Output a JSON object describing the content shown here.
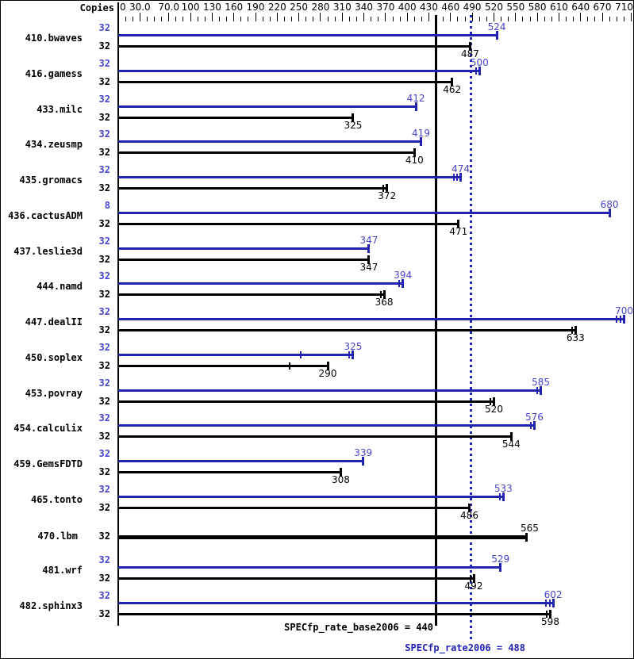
{
  "header": {
    "copies_label": "Copies"
  },
  "chart_data": {
    "type": "bar",
    "orientation": "horizontal",
    "title": "",
    "axis": {
      "min": 0,
      "max": 710,
      "minor_step": 10,
      "labels": [
        {
          "v": 0,
          "t": "0"
        },
        {
          "v": 30,
          "t": "30.0"
        },
        {
          "v": 70,
          "t": "70.0"
        },
        {
          "v": 100,
          "t": "100"
        },
        {
          "v": 130,
          "t": "130"
        },
        {
          "v": 160,
          "t": "160"
        },
        {
          "v": 190,
          "t": "190"
        },
        {
          "v": 220,
          "t": "220"
        },
        {
          "v": 250,
          "t": "250"
        },
        {
          "v": 280,
          "t": "280"
        },
        {
          "v": 310,
          "t": "310"
        },
        {
          "v": 340,
          "t": "340"
        },
        {
          "v": 370,
          "t": "370"
        },
        {
          "v": 400,
          "t": "400"
        },
        {
          "v": 430,
          "t": "430"
        },
        {
          "v": 460,
          "t": "460"
        },
        {
          "v": 490,
          "t": "490"
        },
        {
          "v": 520,
          "t": "520"
        },
        {
          "v": 550,
          "t": "550"
        },
        {
          "v": 580,
          "t": "580"
        },
        {
          "v": 610,
          "t": "610"
        },
        {
          "v": 640,
          "t": "640"
        },
        {
          "v": 670,
          "t": "670"
        },
        {
          "v": 710,
          "t": "710"
        }
      ]
    },
    "colors": {
      "peak_bar": "#2323b2",
      "peak_text": "#4545cc",
      "base_bar": "#000000",
      "base_text": "#000000"
    },
    "reference_lines": [
      {
        "id": "base",
        "label": "SPECfp_rate_base2006 = 440",
        "value": 440,
        "style": "solid",
        "color": "#000000"
      },
      {
        "id": "peak",
        "label": "SPECfp_rate2006 = 488",
        "value": 488,
        "style": "dotted",
        "color": "#2323b2"
      }
    ],
    "benchmarks": [
      {
        "name": "410.bwaves",
        "bars": [
          {
            "series": "peak",
            "copies": "32",
            "value": 524,
            "end_marks": 1
          },
          {
            "series": "base",
            "copies": "32",
            "value": 487,
            "end_marks": 1
          }
        ]
      },
      {
        "name": "416.gamess",
        "bars": [
          {
            "series": "peak",
            "copies": "32",
            "value": 500,
            "end_marks": 2
          },
          {
            "series": "base",
            "copies": "32",
            "value": 462,
            "end_marks": 1
          }
        ]
      },
      {
        "name": "433.milc",
        "bars": [
          {
            "series": "peak",
            "copies": "32",
            "value": 412,
            "end_marks": 1
          },
          {
            "series": "base",
            "copies": "32",
            "value": 325,
            "end_marks": 1
          }
        ]
      },
      {
        "name": "434.zeusmp",
        "bars": [
          {
            "series": "peak",
            "copies": "32",
            "value": 419,
            "end_marks": 1
          },
          {
            "series": "base",
            "copies": "32",
            "value": 410,
            "end_marks": 1
          }
        ]
      },
      {
        "name": "435.gromacs",
        "bars": [
          {
            "series": "peak",
            "copies": "32",
            "value": 474,
            "end_marks": 3
          },
          {
            "series": "base",
            "copies": "32",
            "value": 372,
            "end_marks": 2
          }
        ]
      },
      {
        "name": "436.cactusADM",
        "bars": [
          {
            "series": "peak",
            "copies": "8",
            "value": 680,
            "end_marks": 1
          },
          {
            "series": "base",
            "copies": "32",
            "value": 471,
            "end_marks": 1
          }
        ]
      },
      {
        "name": "437.leslie3d",
        "bars": [
          {
            "series": "peak",
            "copies": "32",
            "value": 347,
            "end_marks": 1
          },
          {
            "series": "base",
            "copies": "32",
            "value": 347,
            "end_marks": 1
          }
        ]
      },
      {
        "name": "444.namd",
        "bars": [
          {
            "series": "peak",
            "copies": "32",
            "value": 394,
            "end_marks": 2
          },
          {
            "series": "base",
            "copies": "32",
            "value": 368,
            "end_marks": 2
          }
        ]
      },
      {
        "name": "447.dealII",
        "bars": [
          {
            "series": "peak",
            "copies": "32",
            "value": 700,
            "end_marks": 3
          },
          {
            "series": "base",
            "copies": "32",
            "value": 633,
            "end_marks": 2
          }
        ]
      },
      {
        "name": "450.soplex",
        "bars": [
          {
            "series": "peak",
            "copies": "32",
            "value": 325,
            "end_marks": 2,
            "run_ticks": [
              253
            ]
          },
          {
            "series": "base",
            "copies": "32",
            "value": 290,
            "end_marks": 1,
            "run_ticks": [
              237
            ]
          }
        ]
      },
      {
        "name": "453.povray",
        "bars": [
          {
            "series": "peak",
            "copies": "32",
            "value": 585,
            "end_marks": 2
          },
          {
            "series": "base",
            "copies": "32",
            "value": 520,
            "end_marks": 2
          }
        ]
      },
      {
        "name": "454.calculix",
        "bars": [
          {
            "series": "peak",
            "copies": "32",
            "value": 576,
            "end_marks": 2
          },
          {
            "series": "base",
            "copies": "32",
            "value": 544,
            "end_marks": 1
          }
        ]
      },
      {
        "name": "459.GemsFDTD",
        "bars": [
          {
            "series": "peak",
            "copies": "32",
            "value": 339,
            "end_marks": 1
          },
          {
            "series": "base",
            "copies": "32",
            "value": 308,
            "end_marks": 1
          }
        ]
      },
      {
        "name": "465.tonto",
        "bars": [
          {
            "series": "peak",
            "copies": "32",
            "value": 533,
            "end_marks": 2
          },
          {
            "series": "base",
            "copies": "32",
            "value": 486,
            "end_marks": 1
          }
        ]
      },
      {
        "name": "470.lbm",
        "bars": [
          {
            "series": "base",
            "copies": "32",
            "value": 565,
            "end_marks": 1,
            "thick": true
          }
        ]
      },
      {
        "name": "481.wrf",
        "bars": [
          {
            "series": "peak",
            "copies": "32",
            "value": 529,
            "end_marks": 1
          },
          {
            "series": "base",
            "copies": "32",
            "value": 492,
            "end_marks": 2
          }
        ]
      },
      {
        "name": "482.sphinx3",
        "bars": [
          {
            "series": "peak",
            "copies": "32",
            "value": 602,
            "end_marks": 3
          },
          {
            "series": "base",
            "copies": "32",
            "value": 598,
            "end_marks": 2
          }
        ]
      }
    ]
  }
}
